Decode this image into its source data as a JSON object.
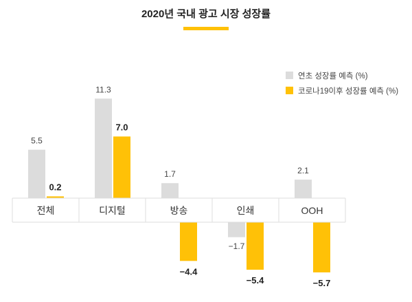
{
  "chart_data": {
    "type": "bar",
    "title": "2020년 국내 광고 시장 성장률",
    "categories": [
      "전체",
      "디지털",
      "방송",
      "인쇄",
      "OOH"
    ],
    "series": [
      {
        "name": "연초 성장률 예측 (%)",
        "values": [
          5.5,
          11.3,
          1.7,
          -1.7,
          2.1
        ],
        "labels": [
          "5.5",
          "11.3",
          "1.7",
          "−1.7",
          "2.1"
        ],
        "color": "#dcdcdc"
      },
      {
        "name": "코로나19이후 성장률 예측 (%)",
        "values": [
          0.2,
          7.0,
          -4.4,
          -5.4,
          -5.7
        ],
        "labels": [
          "0.2",
          "7.0",
          "−4.4",
          "−5.4",
          "−5.7"
        ],
        "color": "#ffc107"
      }
    ],
    "ylim": [
      -6.5,
      12.5
    ],
    "grid": false,
    "legend": "top-right",
    "accent_color": "#ffc107",
    "axis_band_color": "#dddddd"
  }
}
